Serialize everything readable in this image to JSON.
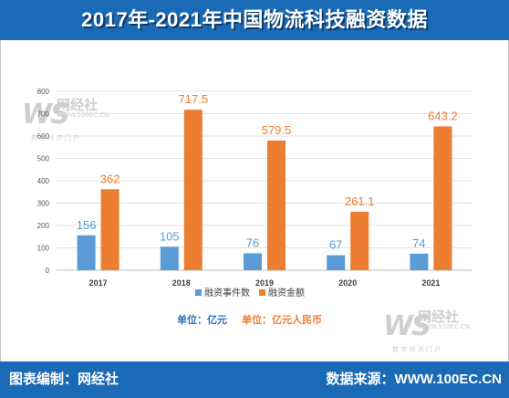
{
  "header": {
    "title": "2017年-2021年中国物流科技融资数据"
  },
  "footer": {
    "left": "图表编制：网经社",
    "right": "数据来源：WWW.100EC.CN"
  },
  "watermark": {
    "mark": "WS",
    "name": "网经社",
    "url": "WWW.100EC.CN",
    "slogan": "数 字 经 济 门 户"
  },
  "units": {
    "a_label": "单位：亿元",
    "b_label": "单位：亿元人民币",
    "a_color": "#2d6fc0",
    "b_color": "#ed7d31"
  },
  "chart_data": {
    "type": "bar",
    "categories": [
      "2017",
      "2018",
      "2019",
      "2020",
      "2021"
    ],
    "series": [
      {
        "name": "融资事件数",
        "values": [
          156,
          105,
          76,
          67,
          74
        ],
        "color": "#5b9bd5",
        "label_color": "#5b9bd5"
      },
      {
        "name": "融资金额",
        "values": [
          362,
          717.5,
          579.5,
          261.1,
          643.2
        ],
        "color": "#ed7d31",
        "label_color": "#ed7d31"
      }
    ],
    "y_ticks": [
      0,
      100,
      200,
      300,
      400,
      500,
      600,
      700,
      800
    ],
    "ylim": [
      0,
      800
    ],
    "grid": true,
    "legend": "bottom"
  }
}
